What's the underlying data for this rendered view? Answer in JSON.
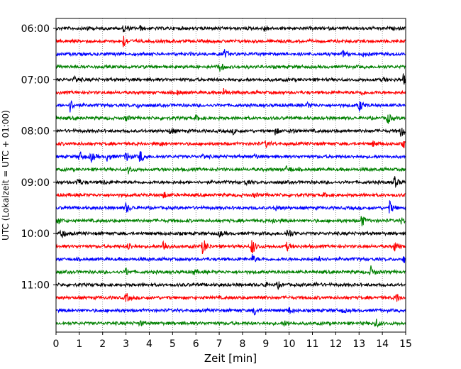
{
  "chart_data": {
    "type": "line",
    "xlabel": "Zeit  [min]",
    "ylabel": "UTC (Lokalzeit = UTC + 01:00)",
    "xlim": [
      0,
      15
    ],
    "x_ticks": [
      "0",
      "1",
      "2",
      "3",
      "4",
      "5",
      "6",
      "7",
      "8",
      "9",
      "10",
      "11",
      "12",
      "13",
      "14",
      "15"
    ],
    "y_tick_labels": [
      "06:00",
      "07:00",
      "08:00",
      "09:00",
      "10:00",
      "11:00"
    ],
    "grid_x": true,
    "trace_colors": [
      "#000000",
      "#ff0000",
      "#0000ff",
      "#008000"
    ],
    "trace_interval_min": 15,
    "first_trace_start": "05:45",
    "traces": [
      {
        "start": "05:45",
        "color": "#000000",
        "events": [
          [
            1.3,
            0.35
          ],
          [
            2.9,
            0.6
          ],
          [
            3.6,
            0.3
          ],
          [
            8.9,
            0.55
          ]
        ]
      },
      {
        "start": "06:00",
        "color": "#ff0000",
        "events": [
          [
            2.9,
            1.0
          ]
        ]
      },
      {
        "start": "06:15",
        "color": "#0000ff",
        "events": [
          [
            7.2,
            0.7
          ],
          [
            12.3,
            0.4
          ],
          [
            13.2,
            0.35
          ]
        ]
      },
      {
        "start": "06:30",
        "color": "#008000",
        "events": [
          [
            7.0,
            0.85
          ]
        ]
      },
      {
        "start": "06:45",
        "color": "#000000",
        "events": [
          [
            0.8,
            0.6
          ],
          [
            14.0,
            0.3
          ],
          [
            14.9,
            0.8
          ]
        ]
      },
      {
        "start": "07:00",
        "color": "#ff0000",
        "events": [
          [
            5.2,
            0.35
          ],
          [
            7.2,
            0.65
          ],
          [
            13.1,
            0.35
          ]
        ]
      },
      {
        "start": "07:15",
        "color": "#0000ff",
        "events": [
          [
            0.6,
            1.0
          ],
          [
            3.5,
            0.3
          ],
          [
            10.8,
            0.4
          ],
          [
            13.0,
            1.0
          ]
        ]
      },
      {
        "start": "07:30",
        "color": "#008000",
        "events": [
          [
            3.0,
            0.45
          ],
          [
            6.0,
            0.4
          ],
          [
            14.2,
            1.0
          ]
        ]
      },
      {
        "start": "07:45",
        "color": "#000000",
        "events": [
          [
            4.9,
            0.55
          ],
          [
            7.6,
            0.4
          ],
          [
            9.4,
            0.55
          ],
          [
            10.1,
            0.4
          ],
          [
            14.8,
            1.1
          ]
        ]
      },
      {
        "start": "08:00",
        "color": "#ff0000",
        "events": [
          [
            4.5,
            0.35
          ],
          [
            9.0,
            0.5
          ],
          [
            13.6,
            0.4
          ],
          [
            14.9,
            0.5
          ]
        ]
      },
      {
        "start": "08:15",
        "color": "#0000ff",
        "events": [
          [
            1.0,
            0.85
          ],
          [
            1.5,
            0.8
          ],
          [
            2.2,
            0.7
          ],
          [
            3.0,
            0.9
          ],
          [
            3.6,
            1.1
          ],
          [
            6.3,
            0.4
          ],
          [
            8.5,
            0.35
          ]
        ]
      },
      {
        "start": "08:30",
        "color": "#008000",
        "events": [
          [
            3.1,
            0.6
          ],
          [
            9.9,
            0.6
          ]
        ]
      },
      {
        "start": "08:45",
        "color": "#000000",
        "events": [
          [
            0.9,
            0.75
          ],
          [
            2.0,
            0.3
          ],
          [
            8.1,
            0.35
          ],
          [
            14.5,
            1.0
          ]
        ]
      },
      {
        "start": "09:00",
        "color": "#ff0000",
        "events": [
          [
            4.6,
            0.6
          ],
          [
            8.5,
            0.35
          ],
          [
            11.5,
            0.3
          ]
        ]
      },
      {
        "start": "09:15",
        "color": "#0000ff",
        "events": [
          [
            3.0,
            0.85
          ],
          [
            9.4,
            0.6
          ],
          [
            14.3,
            1.1
          ]
        ]
      },
      {
        "start": "09:30",
        "color": "#008000",
        "events": [
          [
            0.1,
            0.5
          ],
          [
            9.3,
            0.35
          ],
          [
            13.1,
            1.0
          ],
          [
            14.8,
            0.4
          ]
        ]
      },
      {
        "start": "09:45",
        "color": "#000000",
        "events": [
          [
            0.2,
            0.9
          ],
          [
            7.0,
            0.4
          ],
          [
            9.9,
            0.65
          ],
          [
            10.0,
            0.4
          ]
        ]
      },
      {
        "start": "10:00",
        "color": "#ff0000",
        "events": [
          [
            3.1,
            0.6
          ],
          [
            4.6,
            1.1
          ],
          [
            6.3,
            1.4
          ],
          [
            8.4,
            1.4
          ],
          [
            9.9,
            0.6
          ],
          [
            14.5,
            0.8
          ]
        ]
      },
      {
        "start": "10:15",
        "color": "#0000ff",
        "events": [
          [
            8.4,
            0.75
          ],
          [
            11.3,
            0.55
          ],
          [
            14.9,
            0.6
          ]
        ]
      },
      {
        "start": "10:30",
        "color": "#008000",
        "events": [
          [
            3.0,
            0.6
          ],
          [
            5.9,
            0.4
          ],
          [
            13.5,
            0.9
          ]
        ]
      },
      {
        "start": "10:45",
        "color": "#000000",
        "events": [
          [
            8.9,
            0.4
          ],
          [
            9.5,
            0.5
          ],
          [
            11.1,
            0.3
          ]
        ]
      },
      {
        "start": "11:00",
        "color": "#ff0000",
        "events": [
          [
            3.0,
            0.75
          ],
          [
            8.7,
            0.4
          ],
          [
            14.6,
            0.7
          ]
        ]
      },
      {
        "start": "11:15",
        "color": "#0000ff",
        "events": [
          [
            8.5,
            0.75
          ],
          [
            10.0,
            0.5
          ],
          [
            12.3,
            0.3
          ]
        ]
      },
      {
        "start": "11:30",
        "color": "#008000",
        "events": [
          [
            3.6,
            0.4
          ],
          [
            9.8,
            0.35
          ],
          [
            13.7,
            0.85
          ]
        ]
      }
    ]
  }
}
